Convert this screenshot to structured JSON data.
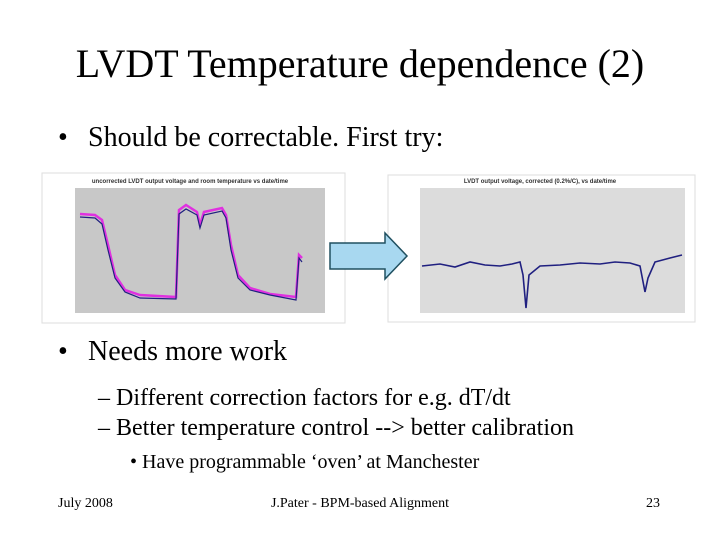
{
  "slide": {
    "title": "LVDT Temperature dependence (2)",
    "bullets": [
      {
        "text": "Should be correctable. First try:"
      },
      {
        "text": "Needs more work"
      }
    ],
    "sub_bullets": [
      "Different correction factors for e.g. dT/dt",
      "Better temperature control --> better calibration"
    ],
    "sub_sub_bullets": [
      "Have programmable ‘oven’ at Manchester"
    ],
    "figures": [
      {
        "title": "uncorrected LVDT output voltage and room temperature vs date/time"
      },
      {
        "title": "LVDT output voltage, corrected (0.2%/C), vs date/time"
      }
    ],
    "footer": {
      "date": "July 2008",
      "center": "J.Pater - BPM-based Alignment",
      "page": "23"
    }
  }
}
